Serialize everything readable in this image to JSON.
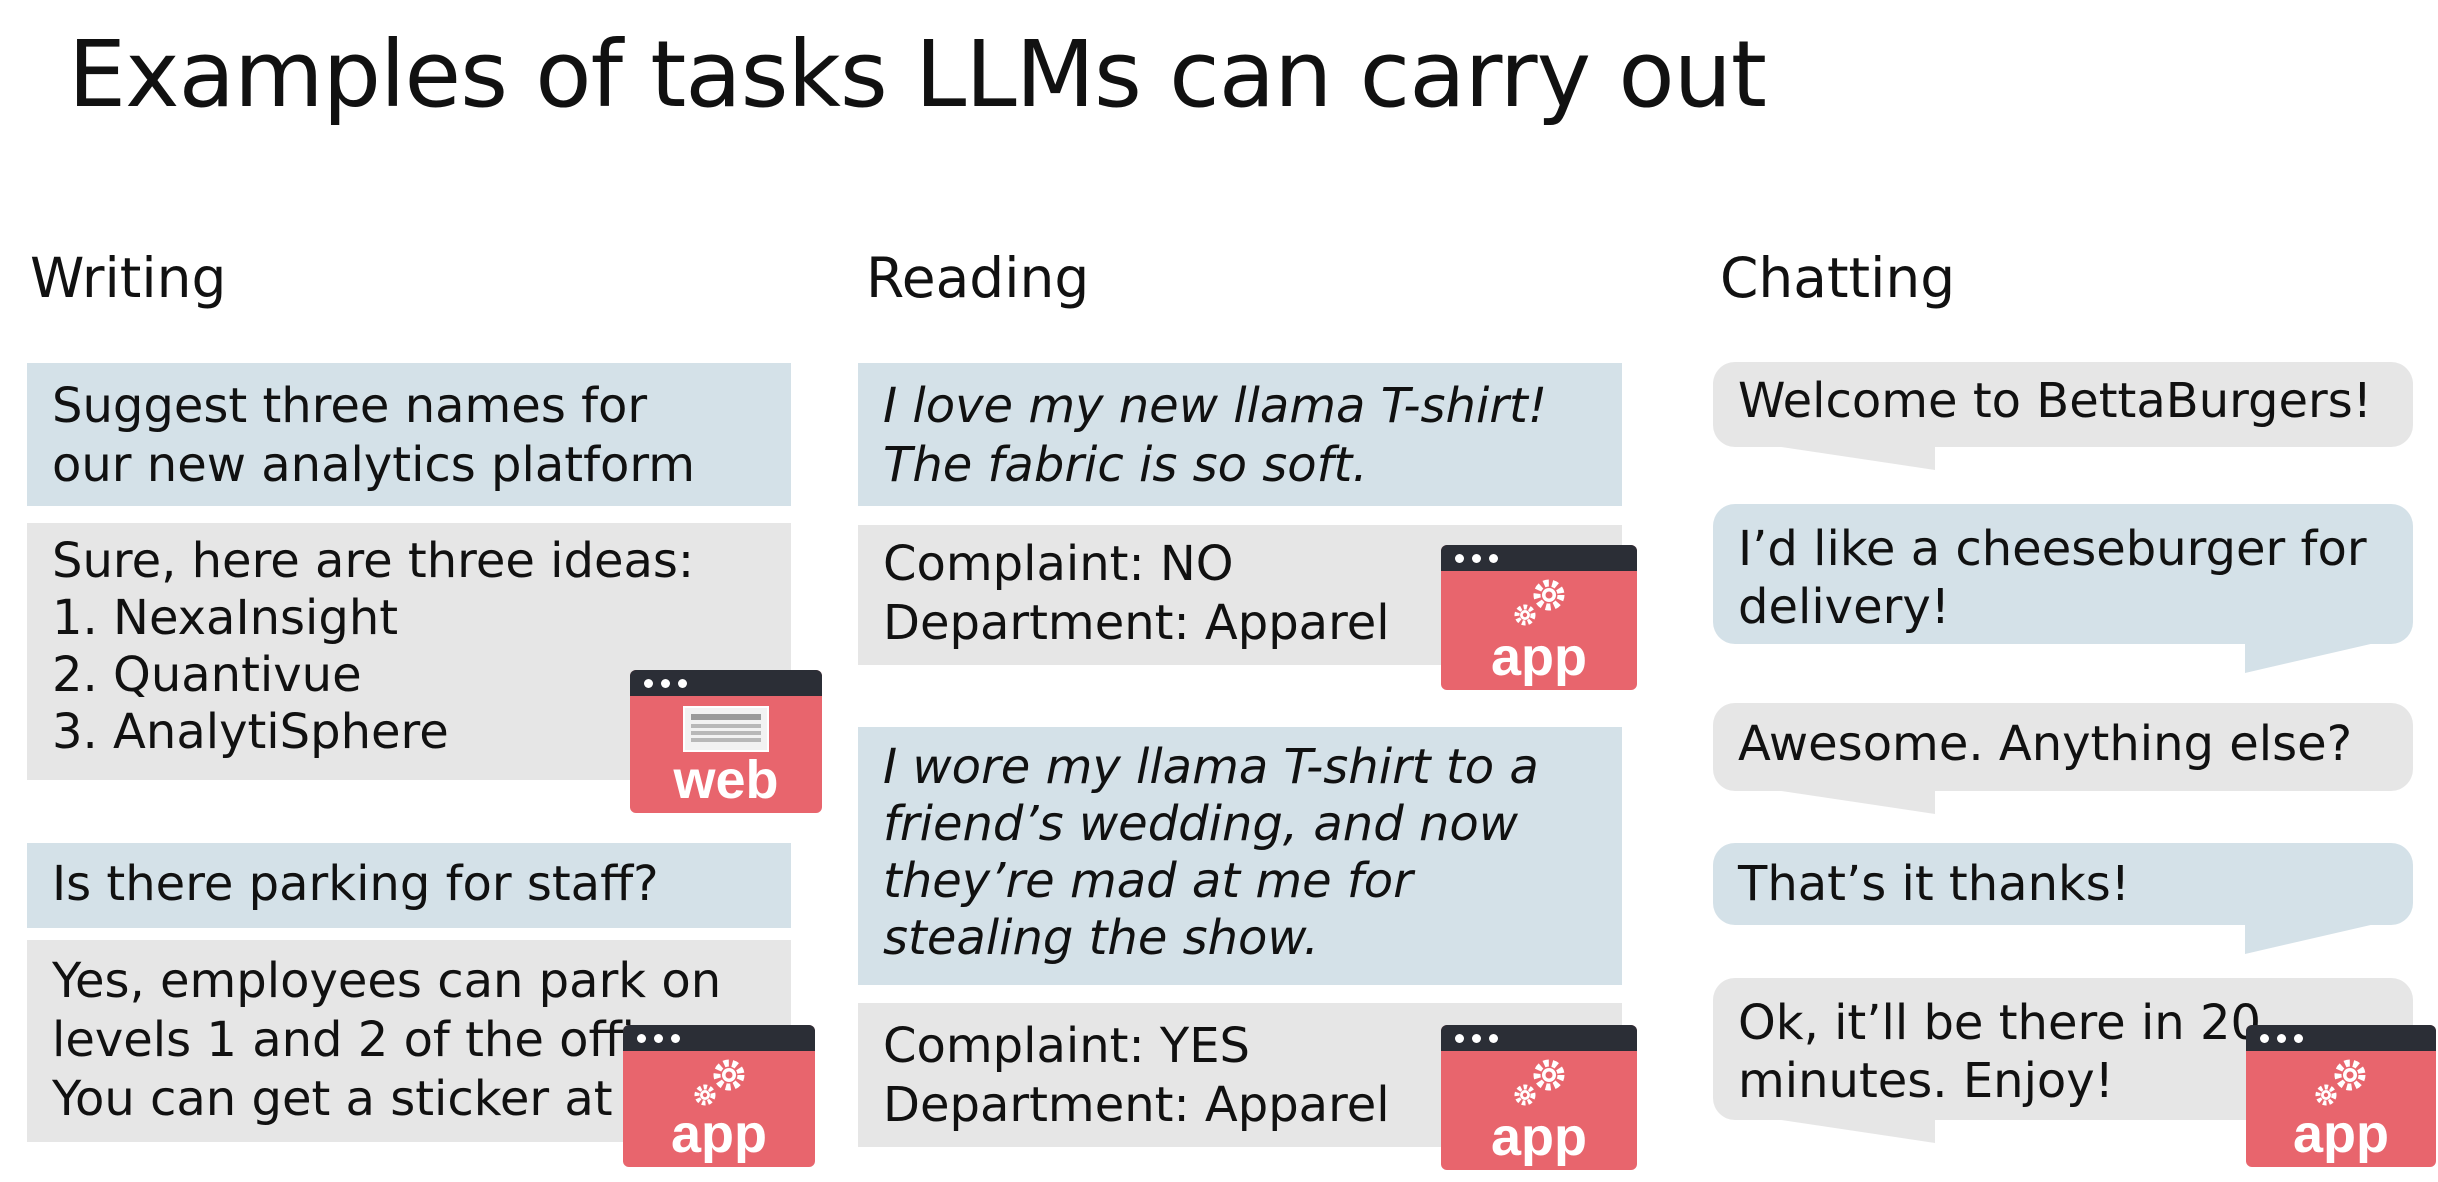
{
  "title": "Examples of tasks LLMs can carry out",
  "columns": {
    "writing": {
      "heading": "Writing",
      "prompt1": "Suggest three names for\nour new analytics platform",
      "response1": "Sure, here are three ideas:\n1. NexaInsight\n2. Quantivue\n3. AnalytiSphere",
      "prompt2": "Is there parking for  staff?",
      "response2": "Yes, employees can park on\nlevels 1 and 2 of the office.\nYou can get a sticker at"
    },
    "reading": {
      "heading": "Reading",
      "review1": "I love my new llama T-shirt!\nThe fabric is so soft.",
      "result1": "Complaint: NO\nDepartment: Apparel",
      "review2": "I wore my llama T-shirt to a\nfriend’s wedding, and now\nthey’re mad at me for\nstealing the show.",
      "result2": "Complaint: YES\nDepartment: Apparel"
    },
    "chatting": {
      "heading": "Chatting",
      "messages": [
        "Welcome to BettaBurgers!",
        "I’d like a cheeseburger for\ndelivery!",
        "Awesome. Anything else?",
        "That’s it thanks!",
        "Ok, it’ll be there in 20\nminutes. Enjoy!"
      ]
    }
  },
  "badges": {
    "web_label": "web",
    "app_label": "app",
    "icons": [
      "window-icon",
      "gears-icon"
    ]
  },
  "colors": {
    "prompt_bg": "#d4e1e8",
    "response_bg": "#e6e6e6",
    "badge_red": "#e8656d",
    "badge_bar": "#2b2e36"
  }
}
